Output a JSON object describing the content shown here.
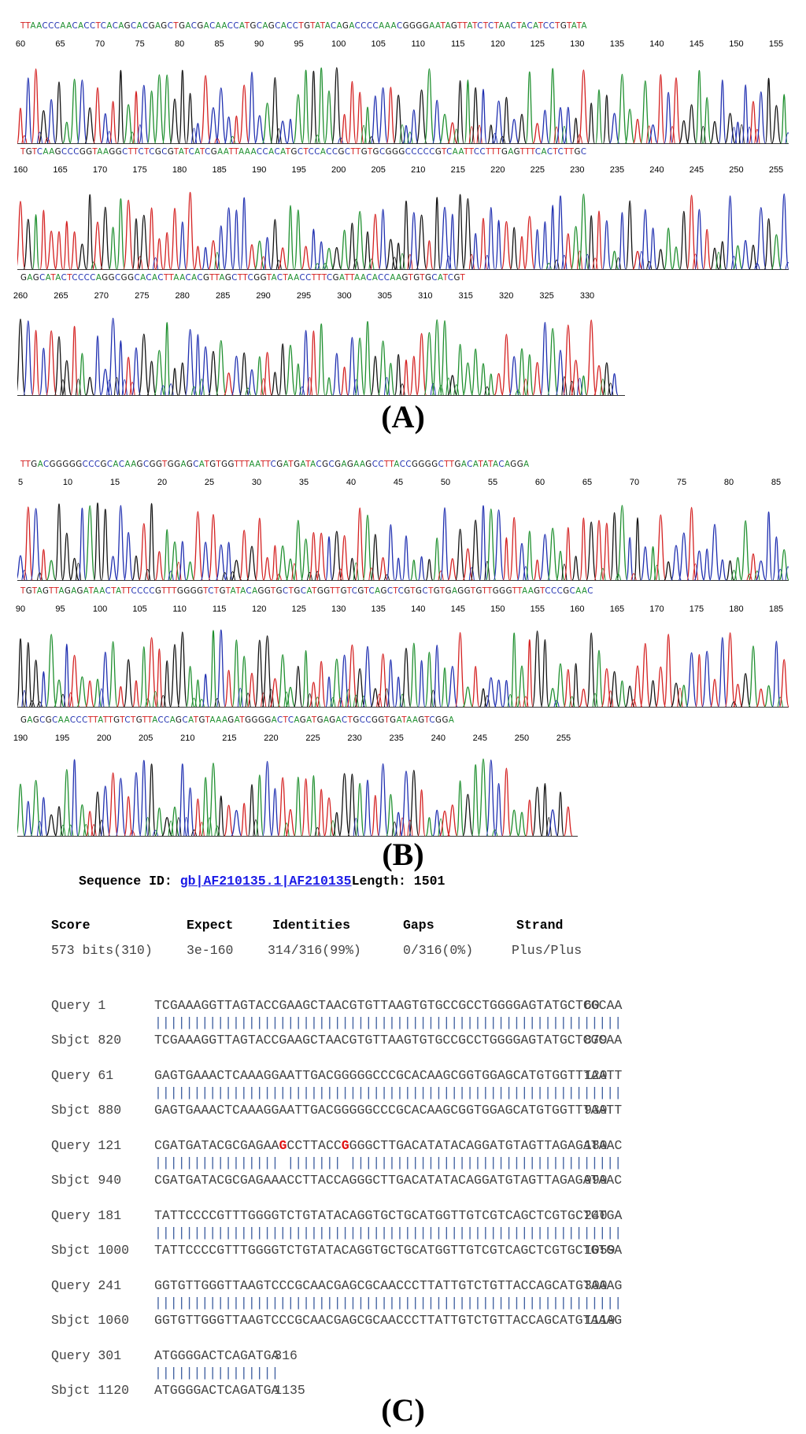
{
  "panels": {
    "A": {
      "label": "(A)",
      "rows": [
        {
          "sequence": "TTAACCCAACACCTCACAGCACGAGCTGACGACAACCATGCAGCACCTGTATACAGACCCCAAACGGGGAATAGTTATCTCTAACTACATCCTGTATA",
          "ticks": [
            "60",
            "65",
            "70",
            "75",
            "80",
            "85",
            "90",
            "95",
            "100",
            "105",
            "110",
            "115",
            "120",
            "125",
            "130",
            "135",
            "140",
            "145",
            "150",
            "155"
          ]
        },
        {
          "sequence": "TGTCAAGCCCGGTAAGGCTTCTCGCGTATCATCGAATTAAACCACATGCTCCACCGCTTGTGCGGGCCCCCGTCAATTCCTTTGAGTTTCACTCTTGC",
          "ticks": [
            "160",
            "165",
            "170",
            "175",
            "180",
            "185",
            "190",
            "195",
            "200",
            "205",
            "210",
            "215",
            "220",
            "225",
            "230",
            "235",
            "240",
            "245",
            "250",
            "255"
          ]
        },
        {
          "sequence": "GAGCATACTCCCCAGGCGGCACACTTAACACGTTAGCTTCGGTACTAACCTTTCGATTAACACCAAGTGTGCATCGT",
          "ticks": [
            "260",
            "265",
            "270",
            "275",
            "280",
            "285",
            "290",
            "295",
            "300",
            "305",
            "310",
            "315",
            "320",
            "325",
            "330"
          ]
        }
      ]
    },
    "B": {
      "label": "(B)",
      "rows": [
        {
          "sequence": "TTGACGGGGGCCCGCACAAGCGGTGGAGCATGTGGTTTAATTCGATGATACGCGAGAAGCCTTACCGGGGCTTGACATATACAGGA",
          "ticks": [
            "5",
            "10",
            "15",
            "20",
            "25",
            "30",
            "35",
            "40",
            "45",
            "50",
            "55",
            "60",
            "65",
            "70",
            "75",
            "80",
            "85"
          ]
        },
        {
          "sequence": "TGTAGTTAGAGATAACTATTCCCCGTTTGGGGTCTGTATACAGGTGCTGCATGGTTGTCGTCAGCTCGTGCTGTGAGGTGTTGGGTTAAGTCCCGCAAC",
          "ticks": [
            "90",
            "95",
            "100",
            "105",
            "110",
            "115",
            "120",
            "125",
            "130",
            "135",
            "140",
            "145",
            "150",
            "155",
            "160",
            "165",
            "170",
            "175",
            "180",
            "185"
          ]
        },
        {
          "sequence": "GAGCGCAACCCTTATTGTCTGTTACCAGCATGTAAAGATGGGGACTCAGATGAGACTGCCGGTGATAAGTCGGA",
          "ticks": [
            "190",
            "195",
            "200",
            "205",
            "210",
            "215",
            "220",
            "225",
            "230",
            "235",
            "240",
            "245",
            "250",
            "255"
          ]
        }
      ]
    },
    "C": {
      "label": "(C)",
      "sequence_id_label": "Sequence ID:",
      "sequence_id_link": "gb|AF210135.1|AF210135",
      "length_label": "Length: 1501",
      "stats_headers": [
        "Score",
        "Expect",
        "Identities",
        "Gaps",
        "Strand"
      ],
      "stats_values": [
        "573 bits(310)",
        "3e-160",
        "314/316(99%)",
        "0/316(0%)",
        "Plus/Plus"
      ],
      "alignment": [
        {
          "query_label": "Query 1",
          "query_seq": "TCGAAAGGTTAGTACCGAAGCTAACGTGTTAAGTGTGCCGCCTGGGGAGTATGCTCGCAA",
          "query_end": "60",
          "sbjct_label": "Sbjct 820",
          "sbjct_seq": "TCGAAAGGTTAGTACCGAAGCTAACGTGTTAAGTGTGCCGCCTGGGGAGTATGCTCGCAA",
          "sbjct_end": "879"
        },
        {
          "query_label": "Query 61",
          "query_seq": "GAGTGAAACTCAAAGGAATTGACGGGGGCCCGCACAAGCGGTGGAGCATGTGGTTTAATT",
          "query_end": "120",
          "sbjct_label": "Sbjct 880",
          "sbjct_seq": "GAGTGAAACTCAAAGGAATTGACGGGGGCCCGCACAAGCGGTGGAGCATGTGGTTTAATT",
          "sbjct_end": "939"
        },
        {
          "query_label": "Query 121",
          "query_seq": "CGATGATACGCGAGAAGCCTTACCGGGGCTTGACATATACAGGATGTAGTTAGAGATAAC",
          "query_end": "180",
          "sbjct_label": "Sbjct 940",
          "sbjct_seq": "CGATGATACGCGAGAAACCTTACCAGGGCTTGACATATACAGGATGTAGTTAGAGATAAC",
          "sbjct_end": "999"
        },
        {
          "query_label": "Query 181",
          "query_seq": "TATTCCCCGTTTGGGGTCTGTATACAGGTGCTGCATGGTTGTCGTCAGCTCGTGCTGTGA",
          "query_end": "240",
          "sbjct_label": "Sbjct 1000",
          "sbjct_seq": "TATTCCCCGTTTGGGGTCTGTATACAGGTGCTGCATGGTTGTCGTCAGCTCGTGCTGTGA",
          "sbjct_end": "1059"
        },
        {
          "query_label": "Query 241",
          "query_seq": "GGTGTTGGGTTAAGTCCCGCAACGAGCGCAACCCTTATTGTCTGTTACCAGCATGTAAAG",
          "query_end": "300",
          "sbjct_label": "Sbjct 1060",
          "sbjct_seq": "GGTGTTGGGTTAAGTCCCGCAACGAGCGCAACCCTTATTGTCTGTTACCAGCATGTAAAG",
          "sbjct_end": "1119"
        },
        {
          "query_label": "Query 301",
          "query_seq": "ATGGGGACTCAGATGA",
          "query_end": "316",
          "sbjct_label": "Sbjct 1120",
          "sbjct_seq": "ATGGGGACTCAGATGA",
          "sbjct_end": "1135"
        }
      ]
    }
  },
  "colors": {
    "A": "#1e8f2e",
    "C": "#1f2fb0",
    "G": "#111111",
    "T": "#d42020",
    "link": "#1a1ae6",
    "mismatch": "#e01010"
  }
}
